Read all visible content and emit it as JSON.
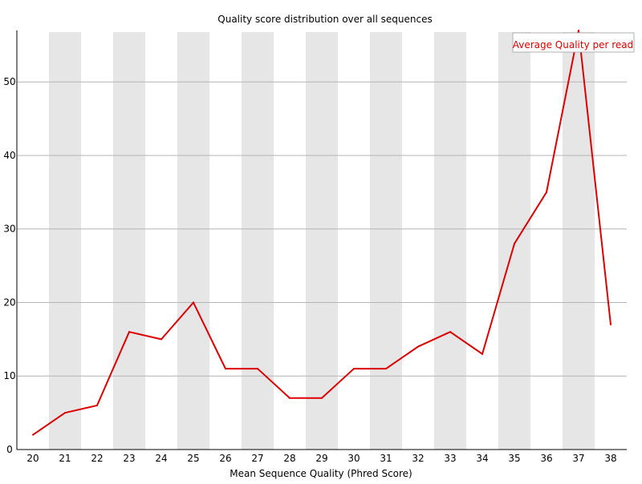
{
  "chart_data": {
    "type": "line",
    "title": "Quality score distribution over all sequences",
    "xlabel": "Mean Sequence Quality (Phred Score)",
    "ylabel": "",
    "x": [
      20,
      21,
      22,
      23,
      24,
      25,
      26,
      27,
      28,
      29,
      30,
      31,
      32,
      33,
      34,
      35,
      36,
      37,
      38
    ],
    "x_tick_labels": [
      "20",
      "21",
      "22",
      "23",
      "24",
      "25",
      "26",
      "27",
      "28",
      "29",
      "30",
      "31",
      "32",
      "33",
      "34",
      "35",
      "36",
      "37",
      "38"
    ],
    "y_ticks": [
      0,
      10,
      20,
      30,
      40,
      50
    ],
    "ylim": [
      0,
      57
    ],
    "series": [
      {
        "name": "Average Quality per read",
        "color": "#dd0000",
        "values": [
          2,
          5,
          6,
          16,
          15,
          20,
          11,
          11,
          7,
          7,
          11,
          11,
          14,
          16,
          13,
          28,
          35,
          57,
          17
        ]
      }
    ],
    "grid": true,
    "alternating_bands": true,
    "band_color": "#e6e6e6",
    "legend_position": "top-right"
  }
}
